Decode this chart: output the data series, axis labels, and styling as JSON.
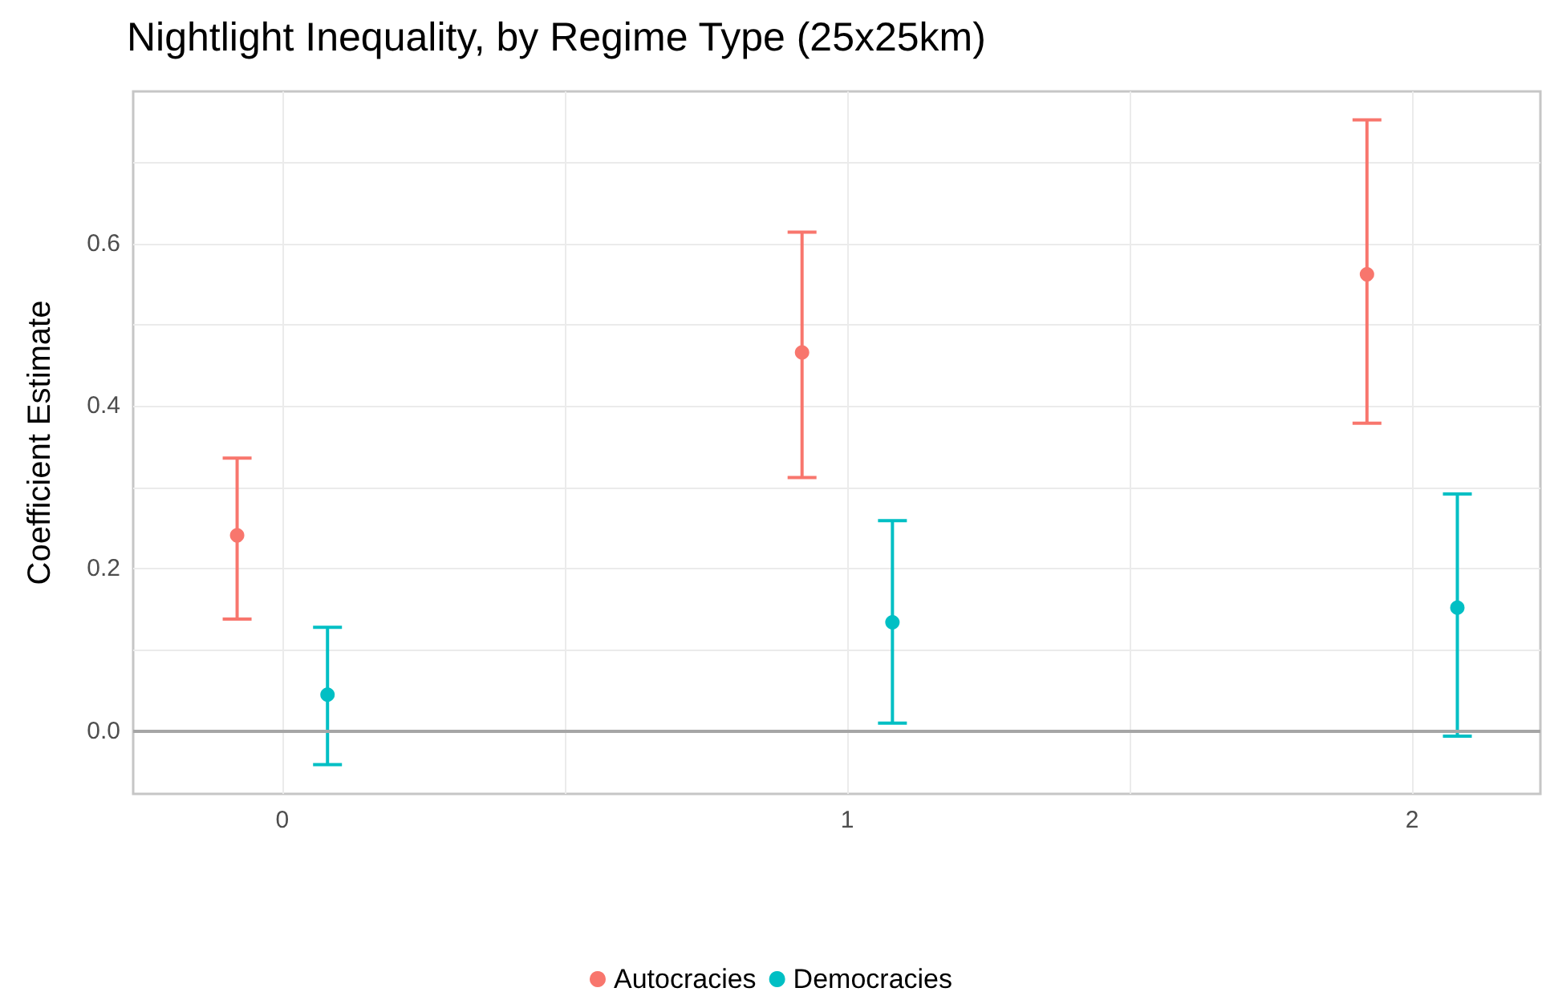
{
  "chart_data": {
    "type": "scatter",
    "title": "Nightlight Inequality, by Regime Type (25x25km)",
    "ylabel": "Coefficient Estimate",
    "xlim": [
      -0.264,
      2.227
    ],
    "xticks": [
      0,
      {
        "value": 0.5,
        "label": null
      },
      1,
      {
        "value": 1.5,
        "label": null
      },
      2
    ],
    "ylim": [
      -0.077,
      0.787
    ],
    "yticks": [
      {
        "value": 0,
        "label": "0.0"
      },
      {
        "value": 0.1,
        "label": null
      },
      0.2,
      {
        "value": 0.3,
        "label": null
      },
      0.4,
      {
        "value": 0.5,
        "label": null
      },
      0.6,
      {
        "value": 0.7,
        "label": null
      }
    ],
    "grid": true,
    "legend": "bottom",
    "marker": "circle",
    "ref_lines": [
      {
        "axis": "y",
        "value": 0,
        "color": "#a6a6a6"
      }
    ],
    "series": [
      {
        "name": "Autocracies",
        "color": "#f8766d",
        "x": [
          -0.08,
          0.92,
          1.92
        ],
        "values": [
          0.241,
          0.466,
          0.562
        ],
        "errors": [
          [
            0.138,
            0.336
          ],
          [
            0.312,
            0.614
          ],
          [
            0.379,
            0.752
          ]
        ]
      },
      {
        "name": "Democracies",
        "color": "#00bfc4",
        "x": [
          0.08,
          1.08,
          2.08
        ],
        "values": [
          0.045,
          0.134,
          0.152
        ],
        "errors": [
          [
            -0.041,
            0.128
          ],
          [
            0.01,
            0.259
          ],
          [
            -0.006,
            0.292
          ]
        ]
      }
    ]
  }
}
